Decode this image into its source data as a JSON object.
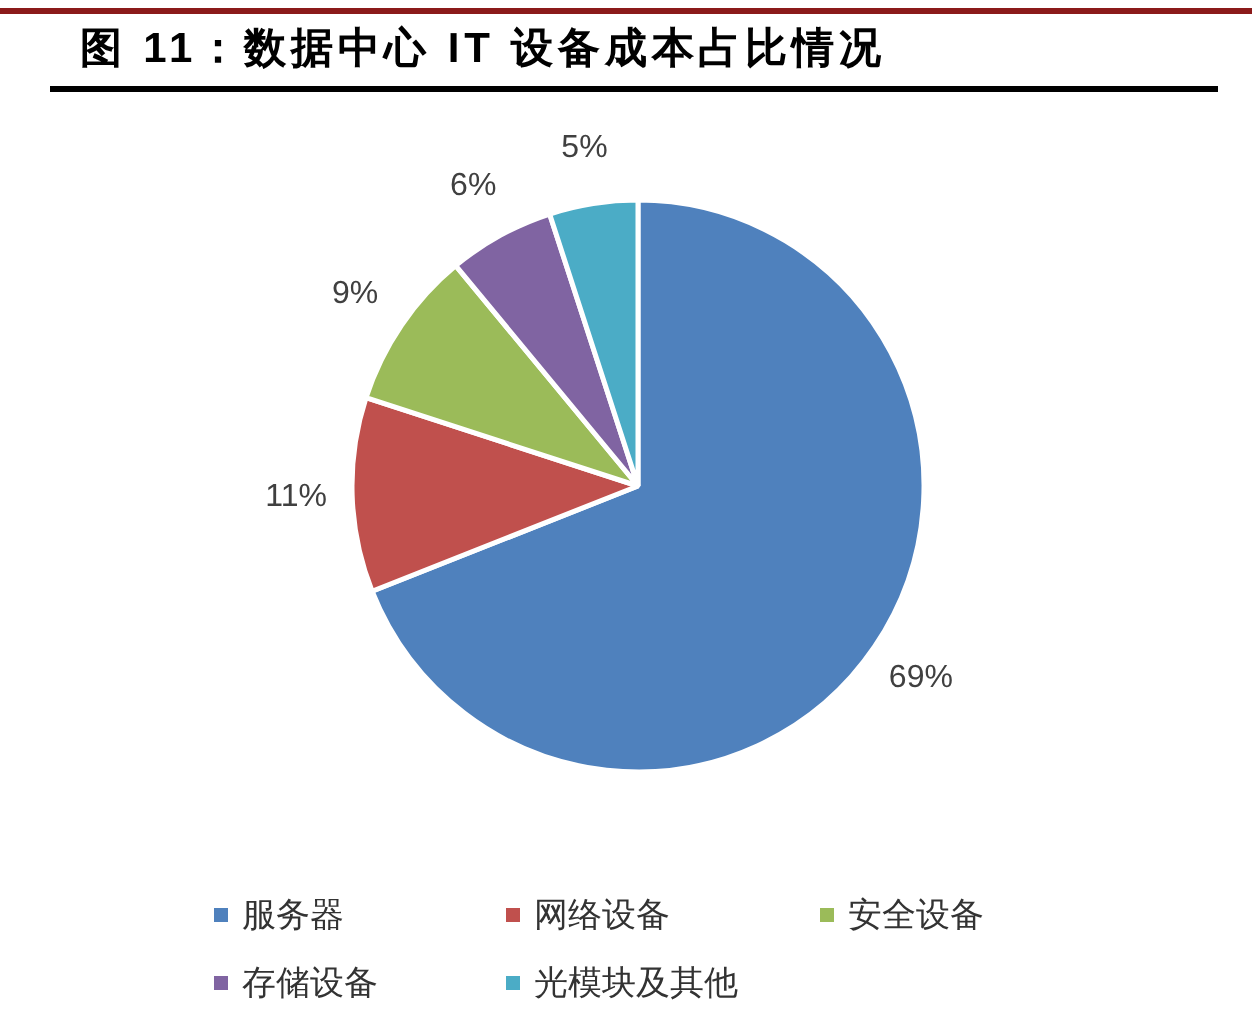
{
  "chart_data": {
    "type": "pie",
    "title": "图 11：数据中心 IT 设备成本占比情况",
    "categories": [
      "服务器",
      "网络设备",
      "安全设备",
      "存储设备",
      "光模块及其他"
    ],
    "values": [
      69,
      11,
      9,
      6,
      5
    ],
    "colors": [
      "#4f81bd",
      "#c0504d",
      "#9bbb59",
      "#8064a2",
      "#4bacc6"
    ],
    "value_labels": [
      "69%",
      "11%",
      "9%",
      "6%",
      "5%"
    ],
    "legend": "bottom"
  }
}
